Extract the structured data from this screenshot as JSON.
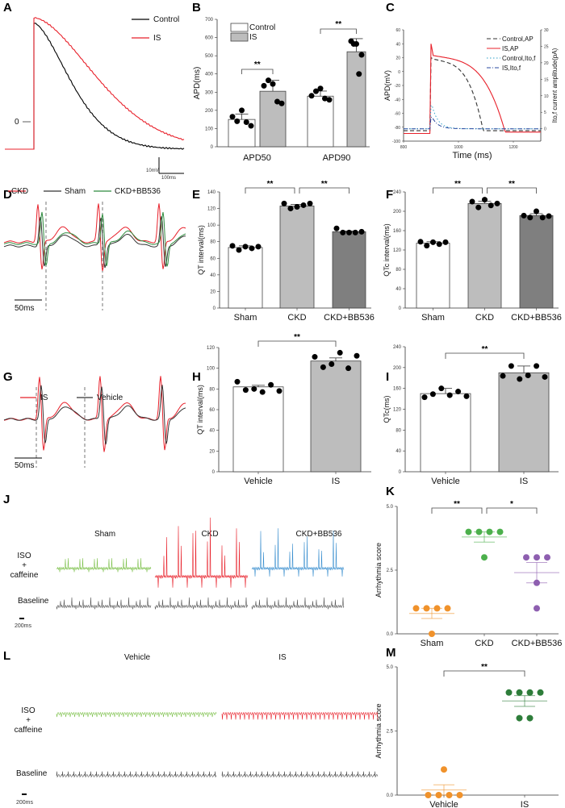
{
  "panel_letters": [
    "A",
    "B",
    "C",
    "D",
    "E",
    "F",
    "G",
    "H",
    "I",
    "J",
    "K",
    "L",
    "M"
  ],
  "panelA": {
    "legend": [
      {
        "name": "Control",
        "color": "#000000"
      },
      {
        "name": "IS",
        "color": "#e8212b"
      }
    ],
    "zero_label": "0",
    "scale_v": "10mV",
    "scale_h": "100ms"
  },
  "chart_data": [
    {
      "id": "B",
      "type": "bar",
      "categories": [
        "APD50",
        "APD90"
      ],
      "ylabel": "APD(ms)",
      "ylim": [
        0,
        700
      ],
      "ticks": [
        0,
        100,
        200,
        300,
        400,
        500,
        600,
        700
      ],
      "legend_placement": "top-left",
      "series": [
        {
          "name": "Control",
          "color": "#ffffff",
          "means": [
            150,
            278
          ],
          "sd": [
            30,
            28
          ],
          "points": [
            [
              165,
              140,
              200,
              135,
              115
            ],
            [
              280,
              305,
              320,
              265,
              258
            ]
          ]
        },
        {
          "name": "IS",
          "color": "#bdbdbd",
          "means": [
            305,
            522
          ],
          "sd": [
            60,
            72
          ],
          "points": [
            [
              335,
              365,
              345,
              248,
              238
            ],
            [
              580,
              565,
              565,
              400,
              505
            ]
          ]
        }
      ],
      "significance": [
        "**",
        "**"
      ]
    },
    {
      "id": "C",
      "type": "line",
      "xlabel": "Time (ms)",
      "ylabel": "APD(mV)",
      "y2label": "Ito,f current amplitude(pA)",
      "xlim": [
        800,
        1300
      ],
      "xticks": [
        800,
        1000,
        1200
      ],
      "ylim": [
        -100,
        60
      ],
      "yticks": [
        -100,
        -80,
        -60,
        -40,
        -20,
        0,
        20,
        40,
        60
      ],
      "y2lim": [
        -3.75,
        30
      ],
      "y2ticks": [
        0,
        5,
        10,
        15,
        20,
        25,
        30
      ],
      "legend_placement": "top-right",
      "series": [
        {
          "name": "Control,AP",
          "color": "#333333",
          "style": "dashed",
          "axis": "left",
          "peak_mV": 20,
          "plateau_mV": 18,
          "rest_mV": -85,
          "repolarized_ms": 1090
        },
        {
          "name": "IS,AP",
          "color": "#e8212b",
          "style": "solid",
          "axis": "left",
          "peak_mV": 40,
          "plateau_mV": 23,
          "rest_mV": -87,
          "repolarized_ms": 1170
        },
        {
          "name": "Control,Ito,f",
          "color": "#2fa0c8",
          "style": "dotted",
          "axis": "right",
          "peak_pA": 7
        },
        {
          "name": "IS,Ito,f",
          "color": "#2a4aa0",
          "style": "dashdot",
          "axis": "right",
          "peak_pA": 3.5
        }
      ]
    },
    {
      "id": "E",
      "type": "bar",
      "categories": [
        "Sham",
        "CKD",
        "CKD+BB536"
      ],
      "ylabel": "QT interval(ms)",
      "ylim": [
        0,
        140
      ],
      "ticks": [
        0,
        20,
        40,
        60,
        80,
        100,
        120,
        140
      ],
      "colors": [
        "#ffffff",
        "#bdbdbd",
        "#7f7f7f"
      ],
      "means": [
        73,
        123,
        92
      ],
      "sd": [
        2,
        2,
        1
      ],
      "points": [
        [
          75,
          70,
          74,
          72,
          74
        ],
        [
          126,
          120,
          122,
          124,
          126
        ],
        [
          96,
          91,
          91,
          91,
          92
        ]
      ],
      "significance": [
        {
          "from": 0,
          "to": 1,
          "label": "**"
        },
        {
          "from": 1,
          "to": 2,
          "label": "**"
        }
      ]
    },
    {
      "id": "F",
      "type": "bar",
      "categories": [
        "Sham",
        "CKD",
        "CKD+BB536"
      ],
      "ylabel": "QTc interval(ms)",
      "ylim": [
        0,
        240
      ],
      "ticks": [
        0,
        40,
        80,
        120,
        160,
        200,
        240
      ],
      "colors": [
        "#ffffff",
        "#bdbdbd",
        "#7f7f7f"
      ],
      "means": [
        134,
        216,
        191
      ],
      "sd": [
        3,
        5,
        4
      ],
      "points": [
        [
          137,
          129,
          136,
          132,
          136
        ],
        [
          220,
          208,
          224,
          212,
          216
        ],
        [
          191,
          187,
          200,
          187,
          190
        ]
      ],
      "significance": [
        {
          "from": 0,
          "to": 1,
          "label": "**"
        },
        {
          "from": 1,
          "to": 2,
          "label": "**"
        }
      ]
    },
    {
      "id": "H",
      "type": "bar",
      "categories": [
        "Vehicle",
        "IS"
      ],
      "ylabel": "QT interval(ms)",
      "ylim": [
        0,
        120
      ],
      "ticks": [
        0,
        20,
        40,
        60,
        80,
        100,
        120
      ],
      "colors": [
        "#ffffff",
        "#bdbdbd"
      ],
      "means": [
        82,
        107
      ],
      "sd": [
        1.5,
        3
      ],
      "points": [
        [
          87,
          79,
          80,
          77,
          84,
          78
        ],
        [
          111,
          101,
          104,
          115,
          100,
          112
        ]
      ],
      "significance": [
        {
          "from": 0,
          "to": 1,
          "label": "**"
        }
      ]
    },
    {
      "id": "I",
      "type": "bar",
      "categories": [
        "Vehicle",
        "IS"
      ],
      "ylabel": "QTc(ms)",
      "ylim": [
        0,
        240
      ],
      "ticks": [
        0,
        40,
        80,
        120,
        160,
        200,
        240
      ],
      "colors": [
        "#ffffff",
        "#bdbdbd"
      ],
      "means": [
        150,
        190
      ],
      "sd": [
        10,
        13
      ],
      "points": [
        [
          143,
          149,
          160,
          147,
          154,
          145
        ],
        [
          184,
          203,
          178,
          185,
          203,
          182
        ]
      ],
      "significance": [
        {
          "from": 0,
          "to": 1,
          "label": "**"
        }
      ]
    },
    {
      "id": "K",
      "type": "scatter",
      "categories": [
        "Sham",
        "CKD",
        "CKD+BB536"
      ],
      "ylabel": "Arrhythmia score",
      "ylim": [
        0,
        5
      ],
      "ticks": [
        "0.0",
        "2.5",
        "5.0"
      ],
      "colors": [
        "#f0922b",
        "#4cb04c",
        "#8e5fb0"
      ],
      "means": [
        0.8,
        3.8,
        2.4
      ],
      "sem": [
        0.2,
        0.2,
        0.4
      ],
      "points": [
        [
          1,
          1,
          1,
          1,
          0
        ],
        [
          4,
          4,
          4,
          4,
          3
        ],
        [
          3,
          3,
          3,
          2,
          1
        ]
      ],
      "significance": [
        {
          "from": 0,
          "to": 1,
          "label": "**"
        },
        {
          "from": 1,
          "to": 2,
          "label": "*"
        }
      ]
    },
    {
      "id": "M",
      "type": "scatter",
      "categories": [
        "Vehicle",
        "IS"
      ],
      "ylabel": "Arrhythmia score",
      "ylim": [
        0,
        5
      ],
      "ticks": [
        "0.0",
        "2.5",
        "5.0"
      ],
      "colors": [
        "#f0922b",
        "#2e7d3a"
      ],
      "means": [
        0.2,
        3.67
      ],
      "sem": [
        0.2,
        0.21
      ],
      "points": [
        [
          0,
          0,
          1,
          0,
          0
        ],
        [
          4,
          4,
          4,
          4,
          3,
          3
        ]
      ],
      "significance": [
        {
          "from": 0,
          "to": 1,
          "label": "**"
        }
      ]
    }
  ],
  "panelD": {
    "legend": [
      {
        "name": "CKD",
        "color": "#e8212b"
      },
      {
        "name": "Sham",
        "color": "#333333"
      },
      {
        "name": "CKD+BB536",
        "color": "#2e8b3e"
      }
    ],
    "scale": "50ms"
  },
  "panelG": {
    "legend": [
      {
        "name": "IS",
        "color": "#e8212b"
      },
      {
        "name": "Vehicle",
        "color": "#333333"
      }
    ],
    "scale": "50ms"
  },
  "panelJ": {
    "groups": [
      {
        "name": "Sham",
        "color": "#7cc04a"
      },
      {
        "name": "CKD",
        "color": "#e8212b"
      },
      {
        "name": "CKD+BB536",
        "color": "#3a8fcf"
      }
    ],
    "row1": [
      "ISO",
      "+",
      "caffeine"
    ],
    "row2": "Baseline",
    "scale": "200ms",
    "baseline_color": "#555555"
  },
  "panelL": {
    "groups": [
      {
        "name": "Vehicle",
        "color": "#7cc04a"
      },
      {
        "name": "IS",
        "color": "#e8212b"
      }
    ],
    "row1": [
      "ISO",
      "+",
      "caffeine"
    ],
    "row2": "Baseline",
    "scale": "200ms",
    "baseline_color": "#555555"
  }
}
